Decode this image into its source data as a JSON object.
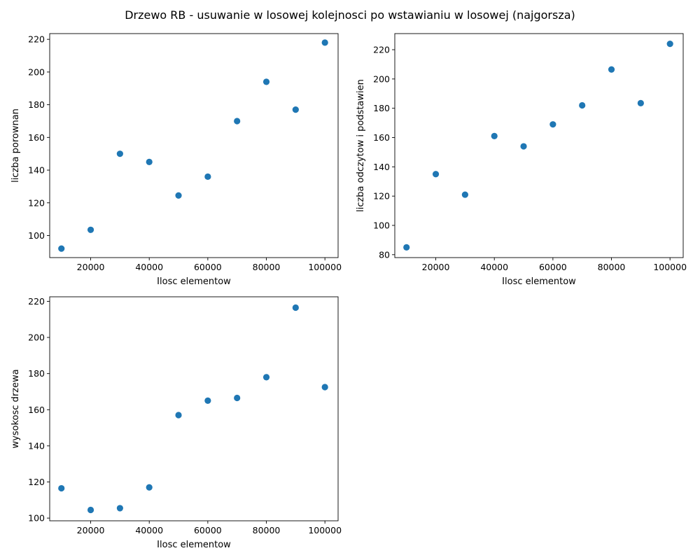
{
  "suptitle": "Drzewo RB - usuwanie w losowej kolejnosci po wstawianiu w losowej (najgorsza)",
  "marker_color": "#1f77b4",
  "chart_data": [
    {
      "type": "scatter",
      "xlabel": "Ilosc elementow",
      "ylabel": "liczba porownan",
      "x": [
        10000,
        20000,
        30000,
        40000,
        50000,
        60000,
        70000,
        80000,
        90000,
        100000
      ],
      "y": [
        92,
        103.5,
        150,
        145,
        124.5,
        136,
        170,
        194,
        177,
        218
      ],
      "xlim": [
        6000,
        104500
      ],
      "ylim": [
        86.5,
        223.5
      ],
      "xticks": [
        20000,
        40000,
        60000,
        80000,
        100000
      ],
      "yticks": [
        100,
        120,
        140,
        160,
        180,
        200,
        220
      ]
    },
    {
      "type": "scatter",
      "xlabel": "Ilosc elementow",
      "ylabel": "liczba odczytow i podstawien",
      "x": [
        10000,
        20000,
        30000,
        40000,
        50000,
        60000,
        70000,
        80000,
        90000,
        100000
      ],
      "y": [
        85,
        135,
        121,
        161,
        154,
        169,
        182,
        206.5,
        183.5,
        224
      ],
      "xlim": [
        6000,
        104500
      ],
      "ylim": [
        78,
        231
      ],
      "xticks": [
        20000,
        40000,
        60000,
        80000,
        100000
      ],
      "yticks": [
        80,
        100,
        120,
        140,
        160,
        180,
        200,
        220
      ]
    },
    {
      "type": "scatter",
      "xlabel": "Ilosc elementow",
      "ylabel": "wysokosc drzewa",
      "x": [
        10000,
        20000,
        30000,
        40000,
        50000,
        60000,
        70000,
        80000,
        90000,
        100000
      ],
      "y": [
        116.5,
        104.5,
        105.5,
        117,
        157,
        165,
        166.5,
        178,
        216.5,
        172.5
      ],
      "xlim": [
        6000,
        104500
      ],
      "ylim": [
        98.5,
        222.5
      ],
      "xticks": [
        20000,
        40000,
        60000,
        80000,
        100000
      ],
      "yticks": [
        100,
        120,
        140,
        160,
        180,
        200,
        220
      ]
    }
  ]
}
